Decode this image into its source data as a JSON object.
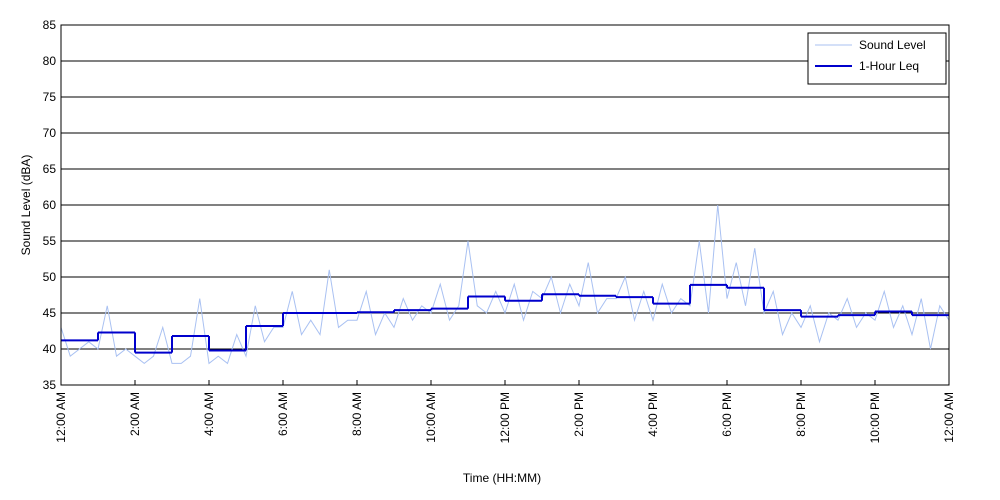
{
  "chart_data": {
    "type": "line",
    "xlabel": "Time (HH:MM)",
    "ylabel": "Sound Level (dBA)",
    "xlim": [
      0,
      24
    ],
    "ylim": [
      35,
      85
    ],
    "yticks": [
      35,
      40,
      45,
      50,
      55,
      60,
      65,
      70,
      75,
      80,
      85
    ],
    "xticks": [
      {
        "value": 0,
        "label": "12:00 AM"
      },
      {
        "value": 2,
        "label": "2:00 AM"
      },
      {
        "value": 4,
        "label": "4:00 AM"
      },
      {
        "value": 6,
        "label": "6:00 AM"
      },
      {
        "value": 8,
        "label": "8:00 AM"
      },
      {
        "value": 10,
        "label": "10:00 AM"
      },
      {
        "value": 12,
        "label": "12:00 PM"
      },
      {
        "value": 14,
        "label": "2:00 PM"
      },
      {
        "value": 16,
        "label": "4:00 PM"
      },
      {
        "value": 18,
        "label": "6:00 PM"
      },
      {
        "value": 20,
        "label": "8:00 PM"
      },
      {
        "value": 22,
        "label": "10:00 PM"
      },
      {
        "value": 24,
        "label": "12:00 AM"
      }
    ],
    "grid": true,
    "legend": "upper right",
    "series": [
      {
        "name": "Sound Level",
        "color": "#a9c1f2",
        "x": [
          0,
          0.25,
          0.5,
          0.75,
          1,
          1.25,
          1.5,
          1.75,
          2,
          2.25,
          2.5,
          2.75,
          3,
          3.25,
          3.5,
          3.75,
          4,
          4.25,
          4.5,
          4.75,
          5,
          5.25,
          5.5,
          5.75,
          6,
          6.25,
          6.5,
          6.75,
          7,
          7.25,
          7.5,
          7.75,
          8,
          8.25,
          8.5,
          8.75,
          9,
          9.25,
          9.5,
          9.75,
          10,
          10.25,
          10.5,
          10.75,
          11,
          11.25,
          11.5,
          11.75,
          12,
          12.25,
          12.5,
          12.75,
          13,
          13.25,
          13.5,
          13.75,
          14,
          14.25,
          14.5,
          14.75,
          15,
          15.25,
          15.5,
          15.75,
          16,
          16.25,
          16.5,
          16.75,
          17,
          17.25,
          17.5,
          17.75,
          18,
          18.25,
          18.5,
          18.75,
          19,
          19.25,
          19.5,
          19.75,
          20,
          20.25,
          20.5,
          20.75,
          21,
          21.25,
          21.5,
          21.75,
          22,
          22.25,
          22.5,
          22.75,
          23,
          23.25,
          23.5,
          23.75,
          24
        ],
        "values": [
          43,
          39,
          40,
          41,
          40,
          46,
          39,
          40,
          39,
          38,
          39,
          43,
          38,
          38,
          39,
          47,
          38,
          39,
          38,
          42,
          39,
          46,
          41,
          43,
          43,
          48,
          42,
          44,
          42,
          51,
          43,
          44,
          44,
          48,
          42,
          45,
          43,
          47,
          44,
          46,
          45,
          49,
          44,
          46,
          55,
          46,
          45,
          48,
          45,
          49,
          44,
          48,
          47,
          50,
          45,
          49,
          46,
          52,
          45,
          47,
          47,
          50,
          44,
          48,
          44,
          49,
          45,
          47,
          46,
          55,
          45,
          60,
          47,
          52,
          46,
          54,
          45,
          48,
          42,
          45,
          43,
          46,
          41,
          45,
          44,
          47,
          43,
          45,
          44,
          48,
          43,
          46,
          42,
          47,
          40,
          46,
          44
        ]
      },
      {
        "name": "1-Hour Leq",
        "color": "#0000cc",
        "bins": [
          0,
          1,
          2,
          3,
          4,
          5,
          6,
          7,
          8,
          9,
          10,
          11,
          12,
          13,
          14,
          15,
          16,
          17,
          18,
          19,
          20,
          21,
          22,
          23,
          24
        ],
        "values": [
          41.2,
          42.3,
          39.5,
          41.8,
          39.8,
          43.2,
          45.0,
          45.0,
          45.1,
          45.4,
          45.6,
          47.3,
          46.7,
          47.6,
          47.4,
          47.2,
          46.3,
          48.9,
          48.5,
          45.4,
          44.5,
          44.7,
          45.2,
          44.7
        ]
      }
    ]
  }
}
